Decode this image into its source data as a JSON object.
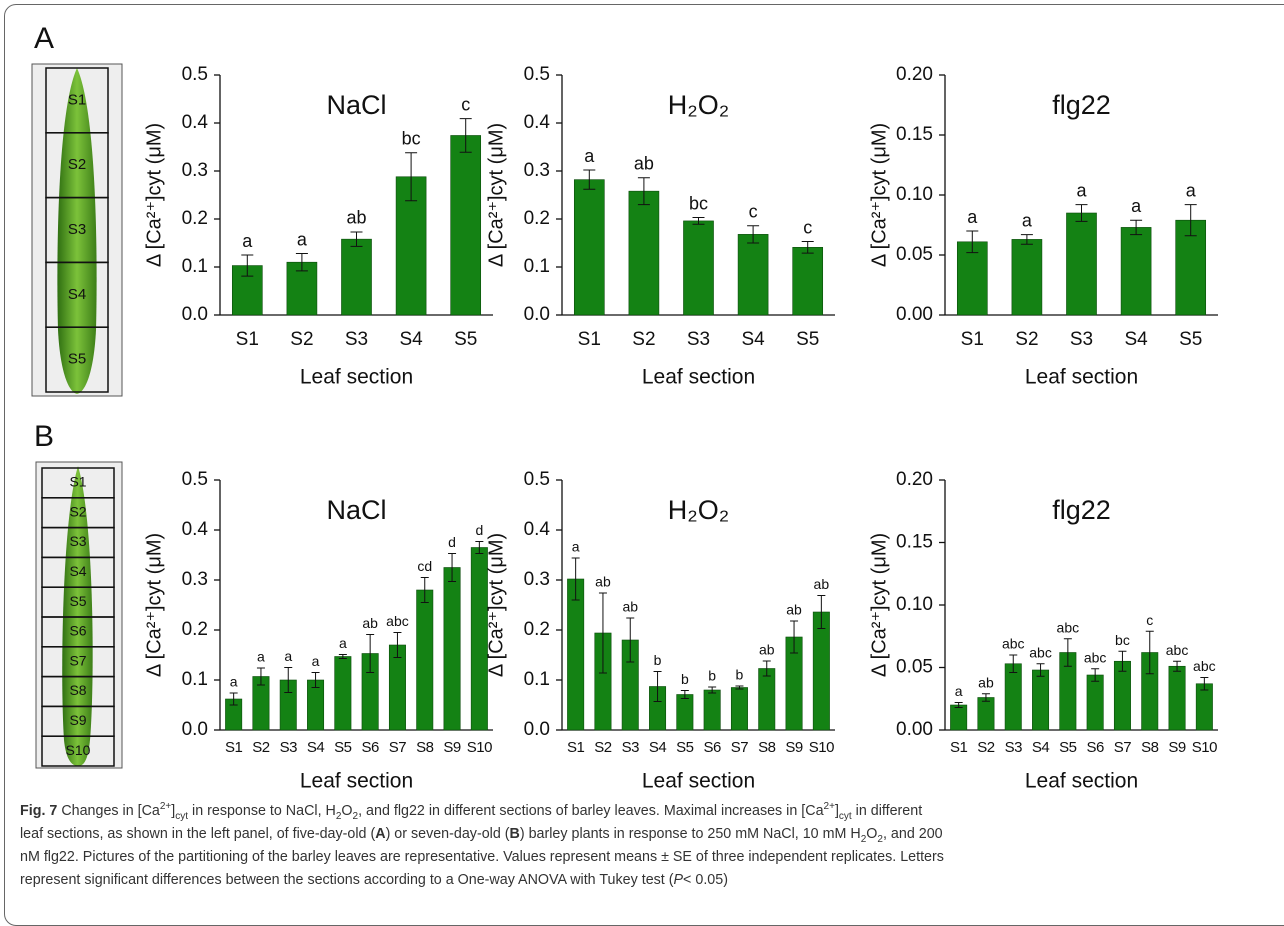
{
  "panels": {
    "A": {
      "label": "A",
      "sections": [
        "S1",
        "S2",
        "S3",
        "S4",
        "S5"
      ]
    },
    "B": {
      "label": "B",
      "sections": [
        "S1",
        "S2",
        "S3",
        "S4",
        "S5",
        "S6",
        "S7",
        "S8",
        "S9",
        "S10"
      ]
    }
  },
  "chart_data": [
    {
      "type": "bar",
      "title": "NaCl",
      "x_label": "Leaf section",
      "y_label": "Δ [Ca²⁺]cyt (μM)",
      "color": "#148214",
      "categories": [
        "S1",
        "S2",
        "S3",
        "S4",
        "S5"
      ],
      "values": [
        0.103,
        0.11,
        0.158,
        0.288,
        0.374
      ],
      "errors": [
        0.022,
        0.018,
        0.015,
        0.05,
        0.035
      ],
      "letters": [
        "a",
        "a",
        "ab",
        "bc",
        "c"
      ],
      "ylim": [
        0,
        0.5
      ],
      "yticks": [
        {
          "value": 0,
          "label": "0.0"
        },
        0.1,
        0.2,
        0.3,
        0.4,
        0.5
      ]
    },
    {
      "type": "bar",
      "title": "H₂O₂",
      "x_label": "Leaf section",
      "y_label": "Δ [Ca²⁺]cyt (μM)",
      "color": "#148214",
      "categories": [
        "S1",
        "S2",
        "S3",
        "S4",
        "S5"
      ],
      "values": [
        0.282,
        0.258,
        0.196,
        0.168,
        0.141
      ],
      "errors": [
        0.02,
        0.028,
        0.007,
        0.018,
        0.012
      ],
      "letters": [
        "a",
        "ab",
        "bc",
        "c",
        "c"
      ],
      "ylim": [
        0,
        0.5
      ],
      "yticks": [
        {
          "value": 0,
          "label": "0.0"
        },
        0.1,
        0.2,
        0.3,
        0.4,
        0.5
      ]
    },
    {
      "type": "bar",
      "title": "flg22",
      "x_label": "Leaf section",
      "y_label": "Δ [Ca²⁺]cyt (μM)",
      "color": "#148214",
      "categories": [
        "S1",
        "S2",
        "S3",
        "S4",
        "S5"
      ],
      "values": [
        0.061,
        0.063,
        0.085,
        0.073,
        0.079
      ],
      "errors": [
        0.009,
        0.004,
        0.007,
        0.006,
        0.013
      ],
      "letters": [
        "a",
        "a",
        "a",
        "a",
        "a"
      ],
      "ylim": [
        0,
        0.2
      ],
      "yticks": [
        {
          "value": 0,
          "label": "0.00"
        },
        0.05,
        {
          "value": 0.1,
          "label": "0.10"
        },
        0.15,
        {
          "value": 0.2,
          "label": "0.20"
        }
      ]
    },
    {
      "type": "bar",
      "title": "NaCl",
      "x_label": "Leaf section",
      "y_label": "Δ [Ca²⁺]cyt (μM)",
      "color": "#148214",
      "categories": [
        "S1",
        "S2",
        "S3",
        "S4",
        "S5",
        "S6",
        "S7",
        "S8",
        "S9",
        "S10"
      ],
      "values": [
        0.062,
        0.107,
        0.1,
        0.1,
        0.147,
        0.153,
        0.17,
        0.28,
        0.325,
        0.365
      ],
      "errors": [
        0.012,
        0.017,
        0.025,
        0.015,
        0.004,
        0.038,
        0.025,
        0.025,
        0.028,
        0.012
      ],
      "letters": [
        "a",
        "a",
        "a",
        "a",
        "a",
        "ab",
        "abc",
        "cd",
        "d",
        "d"
      ],
      "ylim": [
        0,
        0.5
      ],
      "yticks": [
        {
          "value": 0,
          "label": "0.0"
        },
        0.1,
        0.2,
        0.3,
        0.4,
        0.5
      ]
    },
    {
      "type": "bar",
      "title": "H₂O₂",
      "x_label": "Leaf section",
      "y_label": "Δ [Ca²⁺]cyt (μM)",
      "color": "#148214",
      "categories": [
        "S1",
        "S2",
        "S3",
        "S4",
        "S5",
        "S6",
        "S7",
        "S8",
        "S9",
        "S10"
      ],
      "values": [
        0.302,
        0.194,
        0.18,
        0.087,
        0.071,
        0.08,
        0.085,
        0.123,
        0.186,
        0.236
      ],
      "errors": [
        0.042,
        0.08,
        0.044,
        0.03,
        0.008,
        0.006,
        0.003,
        0.015,
        0.032,
        0.033
      ],
      "letters": [
        "a",
        "ab",
        "ab",
        "b",
        "b",
        "b",
        "b",
        "ab",
        "ab",
        "ab"
      ],
      "ylim": [
        0,
        0.5
      ],
      "yticks": [
        {
          "value": 0,
          "label": "0.0"
        },
        0.1,
        0.2,
        0.3,
        0.4,
        0.5
      ]
    },
    {
      "type": "bar",
      "title": "flg22",
      "x_label": "Leaf section",
      "y_label": "Δ [Ca²⁺]cyt (μM)",
      "color": "#148214",
      "categories": [
        "S1",
        "S2",
        "S3",
        "S4",
        "S5",
        "S6",
        "S7",
        "S8",
        "S9",
        "S10"
      ],
      "values": [
        0.02,
        0.026,
        0.053,
        0.048,
        0.062,
        0.044,
        0.055,
        0.062,
        0.051,
        0.037
      ],
      "errors": [
        0.002,
        0.003,
        0.007,
        0.005,
        0.011,
        0.005,
        0.008,
        0.017,
        0.004,
        0.005
      ],
      "letters": [
        "a",
        "ab",
        "abc",
        "abc",
        "abc",
        "abc",
        "bc",
        "c",
        "abc",
        "abc"
      ],
      "ylim": [
        0,
        0.2
      ],
      "yticks": [
        {
          "value": 0,
          "label": "0.00"
        },
        0.05,
        {
          "value": 0.1,
          "label": "0.10"
        },
        0.15,
        {
          "value": 0.2,
          "label": "0.20"
        }
      ]
    }
  ],
  "caption": {
    "lines": [
      [
        "Fig. 7",
        " Changes in [Ca",
        "2+",
        "]",
        "cyt",
        " in response to NaCl, H",
        "2",
        "O",
        "2",
        ", and flg22 in different sections of barley leaves. Maximal increases in [Ca",
        "2+",
        "]",
        "cyt",
        " in different"
      ],
      [
        "leaf sections, as shown in the left panel, of five-day-old (",
        "A",
        ") or seven-day-old (",
        "B",
        ") barley plants in response to 250 mM NaCl, 10 mM H",
        "2",
        "O",
        "2",
        ", and 200"
      ],
      [
        "nM flg22. Pictures of the partitioning of the barley leaves are representative. Values represent means ± SE of three independent replicates. Letters"
      ],
      [
        "represent significant differences between the sections according to a One-way ANOVA with Tukey test (",
        "P",
        "< 0.05)"
      ]
    ]
  }
}
